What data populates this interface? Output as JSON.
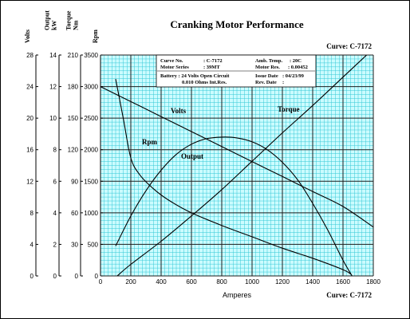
{
  "chart_data": {
    "type": "line",
    "title": "Cranking Motor Performance",
    "curve_label": "Curve: C-7172",
    "xlabel": "Amperes",
    "xlim": [
      0,
      1800
    ],
    "x_ticks": [
      0,
      200,
      400,
      600,
      800,
      1000,
      1200,
      1400,
      1600,
      1800
    ],
    "grid": true,
    "colors": {
      "plot_bg": "#ccfcff",
      "grid_minor": "#33c8d6",
      "grid_major": "#1c1c1c",
      "curves": "#000000"
    },
    "axes": [
      {
        "label": "Volts",
        "range": [
          0,
          28
        ],
        "ticks": [
          "0",
          "4",
          "8",
          "12",
          "16",
          "20",
          "24",
          "28"
        ]
      },
      {
        "label": "Output kW",
        "range": [
          0,
          14
        ],
        "ticks": [
          "0",
          "2",
          "4",
          "6",
          "8",
          "10",
          "12",
          "14"
        ]
      },
      {
        "label": "Torque Nm",
        "range": [
          0,
          210
        ],
        "ticks": [
          "0",
          "30",
          "60",
          "90",
          "120",
          "150",
          "180",
          "210"
        ]
      },
      {
        "label": "Rpm",
        "range": [
          0,
          3500
        ],
        "ticks": [
          "0",
          "500",
          "1000",
          "1500",
          "2000",
          "2500",
          "3000",
          "3500"
        ]
      }
    ],
    "info_box": {
      "row1": [
        {
          "label": "Curve No.",
          "value": ": C-7172"
        },
        {
          "label": "Amb. Temp.",
          "value": ": 20C"
        }
      ],
      "row2": [
        {
          "label": "Motor Series",
          "value": ": 39MT"
        },
        {
          "label": "Motor Res.",
          "value": ": 0.00452"
        }
      ],
      "row3": [
        {
          "label": "Battery : 24 Volts Open Circuit",
          "value": ""
        },
        {
          "label": "Issue Date",
          "value": ": 04/23/99"
        }
      ],
      "row4": [
        {
          "label": "0.010 Ohms Int.Res.",
          "value": ""
        },
        {
          "label": "Rev. Date",
          "value": ":"
        }
      ]
    },
    "series": [
      {
        "name": "Volts",
        "axis": 0,
        "x": [
          0,
          200,
          400,
          600,
          800,
          1000,
          1200,
          1400,
          1600,
          1800
        ],
        "y": [
          24.0,
          22.1,
          20.2,
          18.3,
          16.4,
          14.5,
          12.6,
          10.7,
          8.8,
          6.2
        ]
      },
      {
        "name": "Torque",
        "axis": 2,
        "x": [
          110,
          200,
          400,
          600,
          800,
          1000,
          1200,
          1400,
          1600,
          1800
        ],
        "y": [
          0,
          11,
          33,
          57,
          82,
          109,
          136,
          162,
          189,
          216
        ]
      },
      {
        "name": "Rpm",
        "axis": 3,
        "x": [
          100,
          150,
          200,
          260,
          350,
          450,
          600,
          800,
          1000,
          1200,
          1400,
          1600,
          1650
        ],
        "y": [
          3120,
          2500,
          1870,
          1600,
          1380,
          1200,
          1000,
          800,
          620,
          440,
          280,
          100,
          30
        ]
      },
      {
        "name": "Output",
        "axis": 1,
        "x": [
          100,
          200,
          300,
          400,
          500,
          600,
          700,
          800,
          900,
          1000,
          1100,
          1200,
          1300,
          1400,
          1500,
          1600,
          1660
        ],
        "y": [
          1.9,
          3.8,
          5.4,
          6.7,
          7.7,
          8.35,
          8.7,
          8.8,
          8.75,
          8.5,
          8.0,
          7.2,
          6.1,
          4.6,
          2.9,
          1.0,
          0
        ]
      }
    ]
  }
}
